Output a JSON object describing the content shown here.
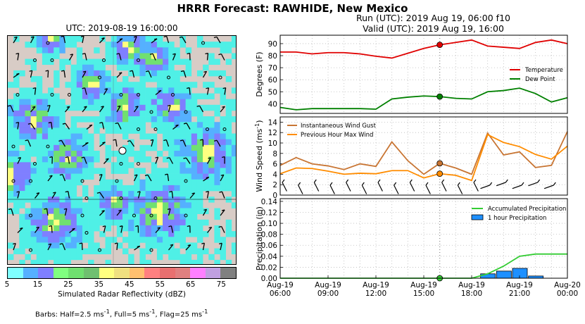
{
  "suptitle": "HRRR Forecast: RAWHIDE, New Mexico",
  "map": {
    "title": "UTC: 2019-08-19 16:00:00",
    "colorbar_label": "Simulated Radar Reflectivity (dBZ)",
    "colorbar_ticks": [
      "5",
      "15",
      "25",
      "35",
      "45",
      "55",
      "65",
      "75"
    ],
    "colorbar_colors": [
      "#7fffff",
      "#55b0ff",
      "#7f7fff",
      "#80ff80",
      "#70e070",
      "#70c070",
      "#ffff80",
      "#f0e080",
      "#ffc070",
      "#ff8080",
      "#e87070",
      "#e08080",
      "#ff80ff",
      "#c0a0e0",
      "#808080"
    ],
    "barbs_note_prefix": "Barbs: Half=2.5 ms",
    "barbs_note_mid1": ", Full=5 ms",
    "barbs_note_mid2": ", Flag=25 ms",
    "barbs_sup": "-1"
  },
  "run": {
    "line1": "Run (UTC): 2019 Aug 19, 06:00 f10",
    "line2": "Valid (UTC): 2019 Aug 19, 16:00"
  },
  "chart_data": [
    {
      "type": "line",
      "ylabel": "Degrees (F)",
      "ylim": [
        32,
        97
      ],
      "yticks": [
        40,
        50,
        60,
        70,
        80,
        90
      ],
      "x": [
        "06:00",
        "07:00",
        "08:00",
        "09:00",
        "10:00",
        "11:00",
        "12:00",
        "13:00",
        "14:00",
        "15:00",
        "16:00",
        "17:00",
        "18:00",
        "19:00",
        "20:00",
        "21:00",
        "22:00",
        "23:00",
        "00:00"
      ],
      "series": [
        {
          "name": "Temperature",
          "color": "#e00000",
          "values": [
            83,
            83,
            81.5,
            82.5,
            82.5,
            81.5,
            79.5,
            78,
            82,
            86,
            89,
            91,
            93,
            88,
            87,
            86,
            91,
            93,
            90
          ]
        },
        {
          "name": "Dew Point",
          "color": "#008000",
          "values": [
            37,
            35,
            36,
            36,
            36,
            36,
            35.5,
            44,
            45.5,
            46.5,
            46,
            44.5,
            44,
            50,
            51,
            53,
            48.5,
            41.5,
            45
          ]
        }
      ],
      "marker_index": 10,
      "grid": true,
      "legend": "center-right"
    },
    {
      "type": "line",
      "ylabel": "Wind Speed (ms",
      "ylabel_sup": "-1",
      "ylabel_close": ")",
      "ylim": [
        0,
        15
      ],
      "yticks": [
        0,
        2,
        4,
        6,
        8,
        10,
        12,
        14
      ],
      "x": [
        "06:00",
        "07:00",
        "08:00",
        "09:00",
        "10:00",
        "11:00",
        "12:00",
        "13:00",
        "14:00",
        "15:00",
        "16:00",
        "17:00",
        "18:00",
        "19:00",
        "20:00",
        "21:00",
        "22:00",
        "23:00",
        "00:00"
      ],
      "series": [
        {
          "name": "Instantaneous Wind Gust",
          "color": "#c87533",
          "values": [
            5.7,
            7.2,
            6.0,
            5.6,
            4.9,
            6.0,
            5.5,
            10.2,
            6.6,
            4.0,
            6.1,
            5.2,
            4.0,
            11.9,
            7.7,
            8.3,
            5.3,
            5.7,
            12.2
          ]
        },
        {
          "name": "Previous Hour Max Wind",
          "color": "#ff8c00",
          "values": [
            4.1,
            5.2,
            5.1,
            4.6,
            4.0,
            4.2,
            4.1,
            4.7,
            4.7,
            3.3,
            4.1,
            3.8,
            2.8,
            11.6,
            10.1,
            9.3,
            7.8,
            6.9,
            9.4
          ]
        }
      ],
      "marker_index": 10,
      "grid": true,
      "legend": "top-left"
    },
    {
      "type": "bar",
      "ylabel": "Precipitation (in)",
      "ylim": [
        0,
        0.145
      ],
      "yticks": [
        "0.00",
        "0.02",
        "0.04",
        "0.06",
        "0.08",
        "0.10",
        "0.12",
        "0.14"
      ],
      "x_tick_labels": [
        [
          "Aug-19",
          "06:00"
        ],
        [
          "Aug-19",
          "09:00"
        ],
        [
          "Aug-19",
          "12:00"
        ],
        [
          "Aug-19",
          "15:00"
        ],
        [
          "Aug-19",
          "18:00"
        ],
        [
          "Aug-19",
          "21:00"
        ],
        [
          "Aug-20",
          "00:00"
        ]
      ],
      "series": [
        {
          "name": "Accumulated Precipitation",
          "color": "#33cc33",
          "values": [
            0,
            0,
            0,
            0,
            0,
            0,
            0,
            0,
            0,
            0,
            0,
            0,
            0,
            0.008,
            0.022,
            0.04,
            0.044,
            0.044,
            0.044
          ]
        },
        {
          "name": "1 hour Precipitation",
          "color": "#1e90ff",
          "values": [
            0,
            0,
            0,
            0,
            0,
            0,
            0,
            0,
            0,
            0,
            0,
            0,
            0,
            0.008,
            0.013,
            0.018,
            0.004,
            0,
            0
          ]
        }
      ],
      "marker_index": 10,
      "grid": true,
      "legend": "top-right"
    }
  ]
}
